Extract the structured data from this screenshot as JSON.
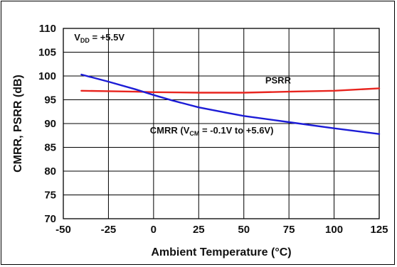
{
  "chart_data": {
    "type": "line",
    "xlabel": "Ambient Temperature (°C)",
    "ylabel": "CMRR, PSRR (dB)",
    "xlim": [
      -50,
      125
    ],
    "ylim": [
      70,
      110
    ],
    "x_ticks": [
      -50,
      -25,
      0,
      25,
      50,
      75,
      100,
      125
    ],
    "y_ticks": [
      70,
      75,
      80,
      85,
      90,
      95,
      100,
      105,
      110
    ],
    "grid": true,
    "annotations": {
      "vdd": {
        "main": "V",
        "sub": "DD",
        "rest": " = +5.5V"
      },
      "psrr": "PSRR",
      "cmrr": {
        "main": "CMRR (V",
        "sub": "CM",
        "rest": " = -0.1V to +5.6V)"
      }
    },
    "series": [
      {
        "name": "PSRR",
        "color": "#e8251f",
        "x": [
          -40,
          -25,
          -10,
          0,
          25,
          50,
          75,
          100,
          125
        ],
        "y": [
          96.9,
          96.8,
          96.7,
          96.6,
          96.5,
          96.5,
          96.7,
          96.9,
          97.4
        ]
      },
      {
        "name": "CMRR",
        "color": "#1c1cd6",
        "x": [
          -40,
          -25,
          -10,
          0,
          10,
          25,
          40,
          50,
          75,
          100,
          125
        ],
        "y": [
          100.3,
          98.8,
          97.2,
          96.0,
          94.9,
          93.4,
          92.3,
          91.6,
          90.3,
          89.0,
          87.8
        ]
      }
    ]
  }
}
